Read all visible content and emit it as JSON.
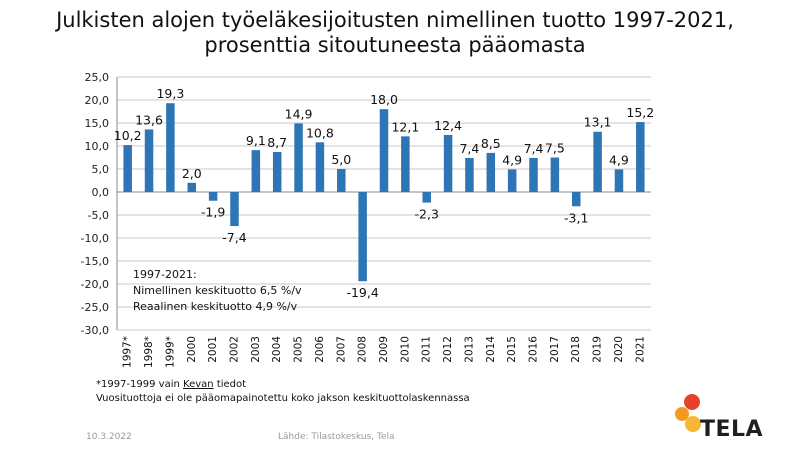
{
  "title_line1": "Julkisten alojen työeläkesijoitusten nimellinen tuotto 1997-2021,",
  "title_line2": "prosenttia sitoutuneesta pääomasta",
  "chart_data": {
    "type": "bar",
    "categories": [
      "1997*",
      "1998*",
      "1999*",
      "2000",
      "2001",
      "2002",
      "2003",
      "2004",
      "2005",
      "2006",
      "2007",
      "2008",
      "2009",
      "2010",
      "2011",
      "2012",
      "2013",
      "2014",
      "2015",
      "2016",
      "2017",
      "2018",
      "2019",
      "2020",
      "2021"
    ],
    "values": [
      10.2,
      13.6,
      19.3,
      2.0,
      -1.9,
      -7.4,
      9.1,
      8.7,
      14.9,
      10.8,
      5.0,
      -19.4,
      18.0,
      12.1,
      -2.3,
      12.4,
      7.4,
      8.5,
      4.9,
      7.4,
      7.5,
      -3.1,
      13.1,
      4.9,
      15.2
    ],
    "value_labels": [
      "10,2",
      "13,6",
      "19,3",
      "2,0",
      "-1,9",
      "-7,4",
      "9,1",
      "8,7",
      "14,9",
      "10,8",
      "5,0",
      "-19,4",
      "18,0",
      "12,1",
      "-2,3",
      "12,4",
      "7,4",
      "8,5",
      "4,9",
      "7,4",
      "7,5",
      "-3,1",
      "13,1",
      "4,9",
      "15,2"
    ],
    "yticks": [
      "25,0",
      "20,0",
      "15,0",
      "10,0",
      "5,0",
      "0,0",
      "-5,0",
      "-10,0",
      "-15,0",
      "-20,0",
      "-25,0",
      "-30,0"
    ],
    "ylim": [
      -30,
      25
    ],
    "grid": true,
    "bar_color": "#2e75b6",
    "annotation": [
      "1997-2021:",
      "Nimellinen keskituotto 6,5 %/v",
      "Reaalinen keskituotto 4,9 %/v"
    ]
  },
  "notes": {
    "line1_pre": "*1997-1999 vain ",
    "line1_link": "Kevan",
    "line1_post": " tiedot",
    "line2": "Vuosituottoja ei ole pääomapainotettu koko jakson keskituottolaskennassa"
  },
  "footer": {
    "date": "10.3.2022",
    "source": "Lähde: Tilastokeskus, Tela"
  },
  "logo": {
    "text": "TELA",
    "colors": [
      "#e8412b",
      "#f39a1e",
      "#f7b733"
    ]
  }
}
